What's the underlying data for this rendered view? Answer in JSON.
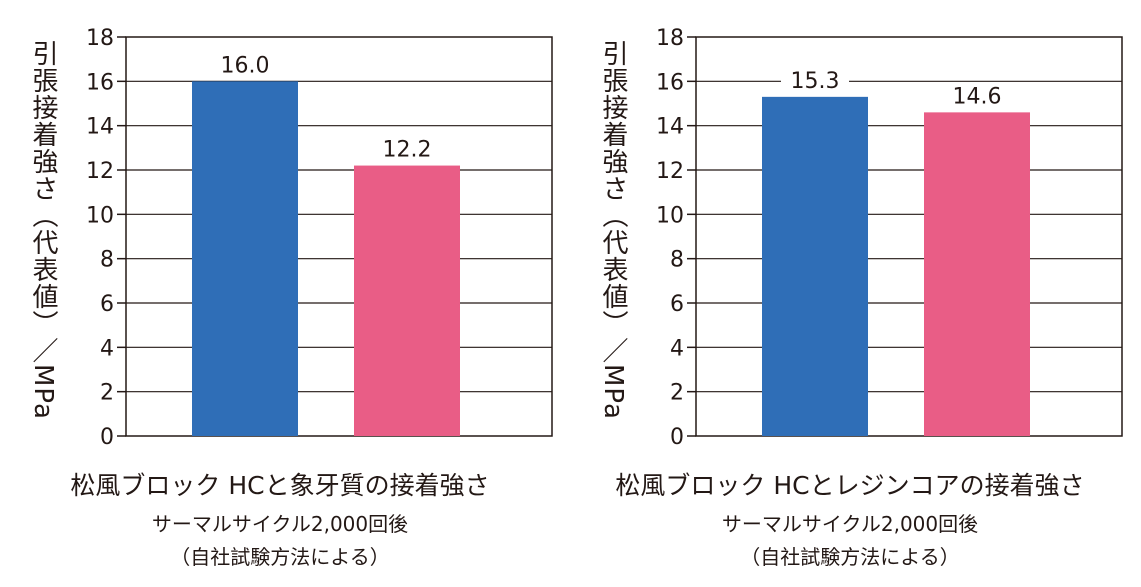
{
  "y_axis_label": "引張接着強さ（代表値）／MPa",
  "chart_data": [
    {
      "type": "bar",
      "title": "松風ブロック HCと象牙質の接着強さ",
      "subtitle_lines": [
        "サーマルサイクル2,000回後",
        "（自社試験方法による）"
      ],
      "ylabel": "引張接着強さ（代表値）／MPa",
      "ylim": [
        0,
        18
      ],
      "yticks": [
        0,
        2,
        4,
        6,
        8,
        10,
        12,
        14,
        16,
        18
      ],
      "ytick_labels": [
        "0",
        "2",
        "4",
        "6",
        "8",
        "10",
        "12",
        "14",
        "16",
        "18"
      ],
      "grid": true,
      "values": [
        16.0,
        12.2
      ],
      "value_labels": [
        "16.0",
        "12.2"
      ],
      "colors": [
        "#2f6eb7",
        "#e95d86"
      ]
    },
    {
      "type": "bar",
      "title": "松風ブロック HCとレジンコアの接着強さ",
      "subtitle_lines": [
        "サーマルサイクル2,000回後",
        "（自社試験方法による）"
      ],
      "ylabel": "引張接着強さ（代表値）／MPa",
      "ylim": [
        0,
        18
      ],
      "yticks": [
        0,
        2,
        4,
        6,
        8,
        10,
        12,
        14,
        16,
        18
      ],
      "ytick_labels": [
        "0",
        "2",
        "4",
        "6",
        "8",
        "10",
        "12",
        "14",
        "16",
        "18"
      ],
      "grid": true,
      "values": [
        15.3,
        14.6
      ],
      "value_labels": [
        "15.3",
        "14.6"
      ],
      "colors": [
        "#2f6eb7",
        "#e95d86"
      ]
    }
  ]
}
